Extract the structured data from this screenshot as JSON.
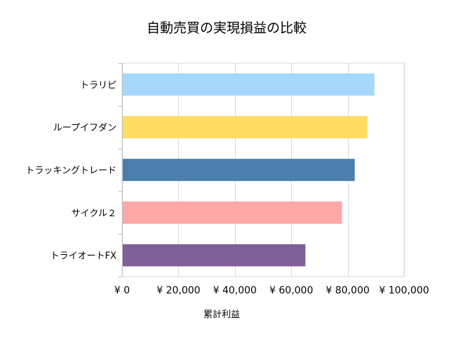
{
  "chart_data": {
    "type": "bar",
    "orientation": "horizontal",
    "title": "自動売買の実現損益の比較",
    "xlabel": "累計利益",
    "ylabel": "",
    "categories": [
      "トラリピ",
      "ループイフダン",
      "トラッキングトレード",
      "サイクル２",
      "トライオートFX"
    ],
    "values": [
      89500,
      87000,
      82500,
      78000,
      65000
    ],
    "colors": [
      "#a6d8fc",
      "#ffdd63",
      "#4a7fac",
      "#ffa6a6",
      "#7f6096"
    ],
    "xlim": [
      0,
      100000
    ],
    "x_tick_values": [
      0,
      20000,
      40000,
      60000,
      80000,
      100000
    ],
    "x_tick_labels": [
      "¥ 0",
      "¥ 20,000",
      "¥ 40,000",
      "¥ 60,000",
      "¥ 80,000",
      "¥ 100,000"
    ],
    "grid": true,
    "legend": "none"
  }
}
